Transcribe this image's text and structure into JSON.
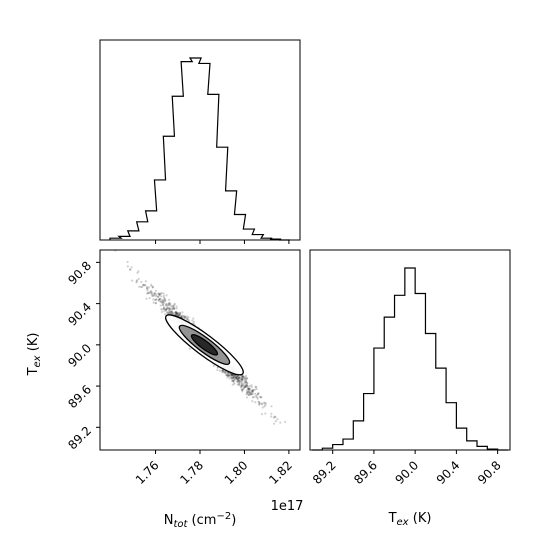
{
  "chart_data": [
    {
      "type": "histogram",
      "panel": "Ntot marginal",
      "bin_edges": [
        1.735,
        1.745,
        1.755,
        1.765,
        1.775,
        1.785,
        1.795,
        1.805,
        1.815,
        1.825
      ],
      "note_bins": "relative heights as fractions of the peak",
      "bins": {
        "x": [
          1.742,
          1.746,
          1.75,
          1.754,
          1.758,
          1.762,
          1.766,
          1.77,
          1.774,
          1.778,
          1.782,
          1.786,
          1.79,
          1.794,
          1.798,
          1.802,
          1.806,
          1.81,
          1.814,
          1.818
        ],
        "y": [
          0.01,
          0.02,
          0.05,
          0.1,
          0.16,
          0.33,
          0.57,
          0.79,
          0.98,
          1.0,
          0.97,
          0.8,
          0.51,
          0.27,
          0.14,
          0.06,
          0.03,
          0.01,
          0.005,
          0.0
        ]
      },
      "xlim": [
        1.735,
        1.825
      ],
      "xticks": [
        "1.76",
        "1.78",
        "1.80",
        "1.82"
      ]
    },
    {
      "type": "scatter",
      "panel": "Ntot vs Tex joint",
      "xlabel": "N$_{tot}$ (cm$^{-2}$)",
      "ylabel": "T$_{ex}$ (K)",
      "x_offset_label": "1e17",
      "xlim": [
        1.735,
        1.825
      ],
      "ylim": [
        88.98,
        90.92
      ],
      "xticks": [
        "1.76",
        "1.78",
        "1.80",
        "1.82"
      ],
      "yticks": [
        "89.2",
        "89.6",
        "90.0",
        "90.4",
        "90.8"
      ],
      "center": [
        1.782,
        90.0
      ],
      "correlation": "strong negative",
      "contours": "1-, 2-, 3-sigma levels"
    },
    {
      "type": "histogram",
      "panel": "Tex marginal",
      "xlabel": "T$_{ex}$ (K)",
      "xlim": [
        88.98,
        90.92
      ],
      "xticks": [
        "89.2",
        "89.6",
        "90.0",
        "90.4",
        "90.8"
      ],
      "bins": {
        "x": [
          89.05,
          89.15,
          89.25,
          89.35,
          89.45,
          89.55,
          89.65,
          89.75,
          89.85,
          89.95,
          90.05,
          90.15,
          90.25,
          90.35,
          90.45,
          90.55,
          90.65,
          90.75,
          90.85
        ],
        "y": [
          0.0,
          0.01,
          0.03,
          0.06,
          0.16,
          0.31,
          0.56,
          0.73,
          0.85,
          1.0,
          0.86,
          0.64,
          0.45,
          0.26,
          0.12,
          0.05,
          0.02,
          0.005,
          0.0
        ]
      }
    }
  ],
  "labels": {
    "x_label_ntot": "N",
    "x_label_ntot_sub": "tot",
    "x_label_ntot_unit": " (cm",
    "x_label_ntot_sup": "−2",
    "x_label_ntot_close": ")",
    "x_label_tex": "T",
    "x_label_tex_sub": "ex",
    "x_label_tex_unit": " (K)",
    "y_label_tex": "T",
    "y_label_tex_sub": "ex",
    "y_label_tex_unit": " (K)",
    "offset": "1e17"
  }
}
